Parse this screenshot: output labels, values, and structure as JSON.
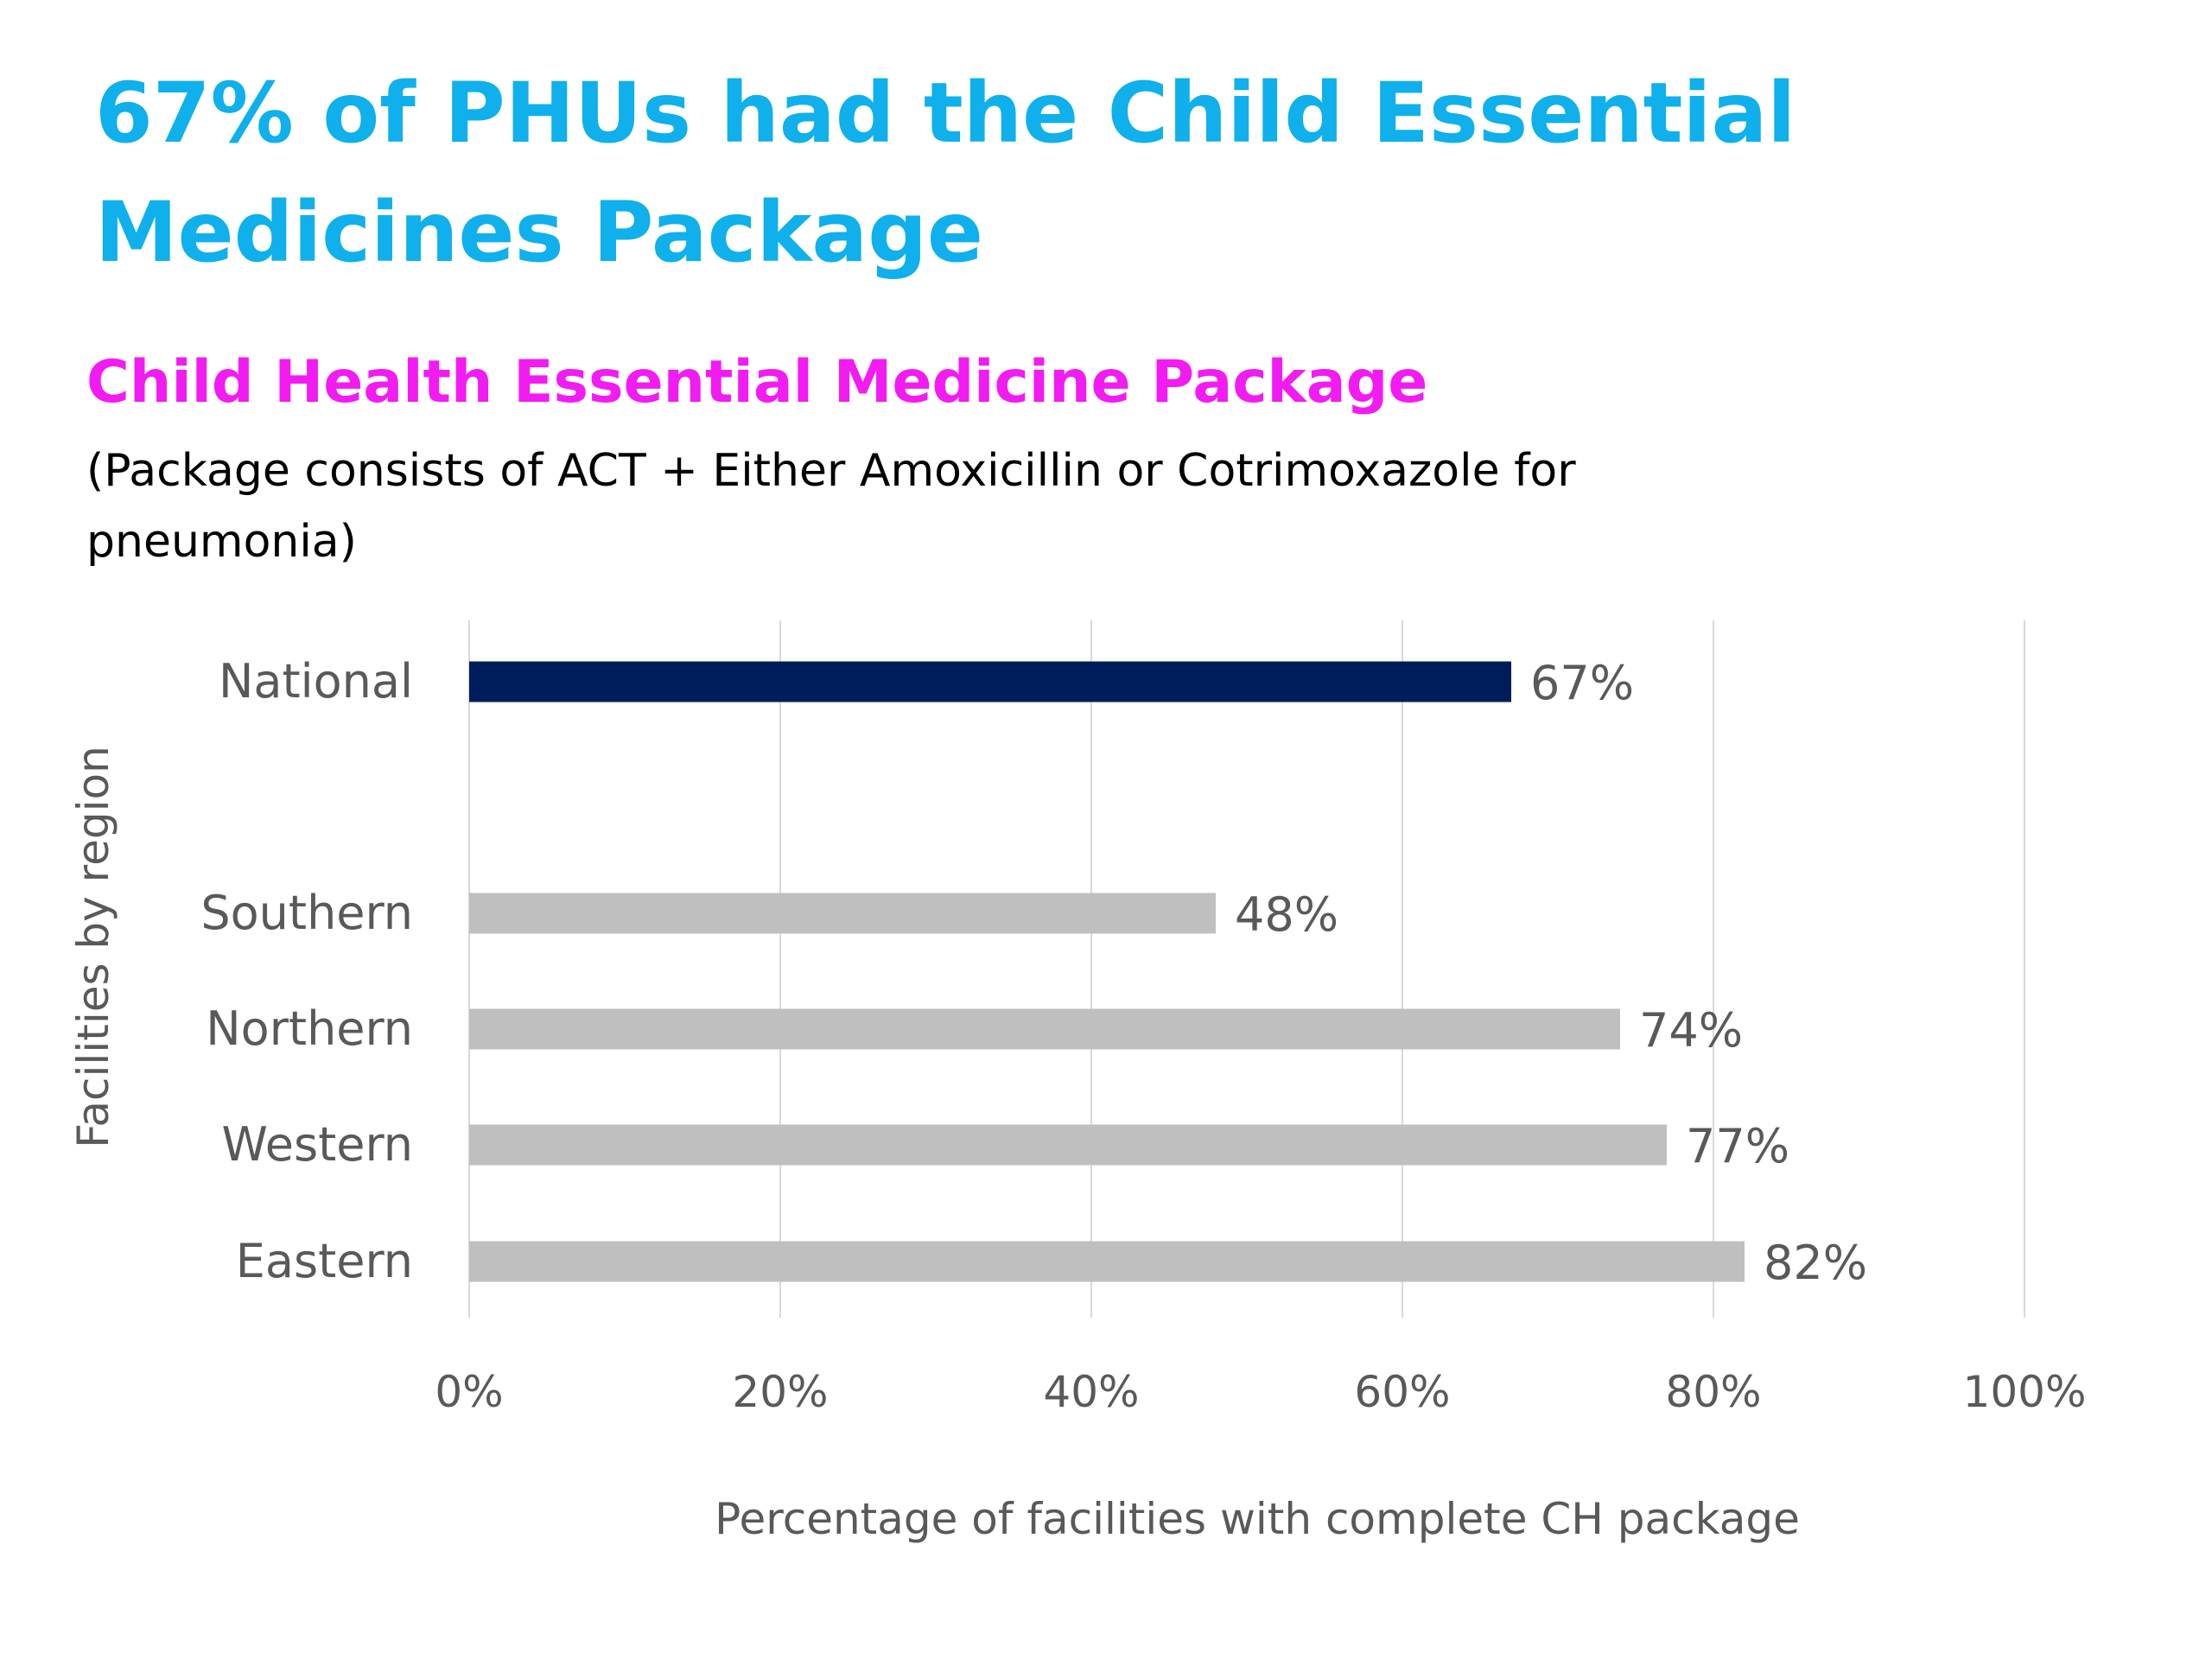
{
  "slide": {
    "title": "67% of PHUs had the Child Essential Medicines Package"
  },
  "chart_data": {
    "type": "bar",
    "orientation": "horizontal",
    "title": "Child Health Essential Medicine Package",
    "subtitle": "(Package consists of ACT + Either Amoxicillin or Cotrimoxazole for pneumonia)",
    "xlabel": "Percentage of facilities with complete CH package",
    "ylabel": "Facilities by region",
    "xlim": [
      0,
      100
    ],
    "x_ticks": [
      "0%",
      "20%",
      "40%",
      "60%",
      "80%",
      "100%"
    ],
    "grid": "vertical",
    "legend": "none",
    "categories": [
      "National",
      "Southern",
      "Northern",
      "Western",
      "Eastern"
    ],
    "values": [
      67,
      48,
      74,
      77,
      82
    ],
    "data_labels": [
      "67%",
      "48%",
      "74%",
      "77%",
      "82%"
    ],
    "highlight_category": "National",
    "colors": {
      "highlight": "#001D5B",
      "default": "#BFBFBF",
      "grid": "#D9D9D9",
      "text": "#595959"
    }
  },
  "colors": {
    "slide_title": "#0FB0EB",
    "chart_title": "#F21BF2"
  }
}
